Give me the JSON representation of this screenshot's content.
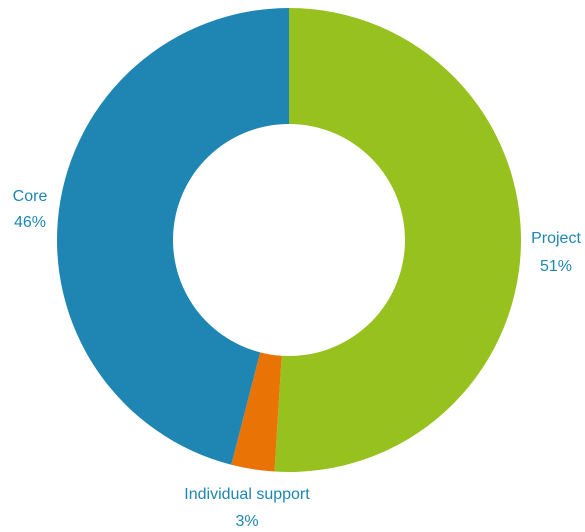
{
  "chart_data": {
    "type": "pie",
    "style": "donut",
    "title": "",
    "slices": [
      {
        "name": "Project",
        "value": 51,
        "label": "51%",
        "color": "#96c11f"
      },
      {
        "name": "Individual support",
        "value": 3,
        "label": "3%",
        "color": "#ea7306"
      },
      {
        "name": "Core",
        "value": 46,
        "label": "46%",
        "color": "#1f86b4"
      }
    ],
    "label_color": "#1e86b4",
    "legend": "none"
  }
}
